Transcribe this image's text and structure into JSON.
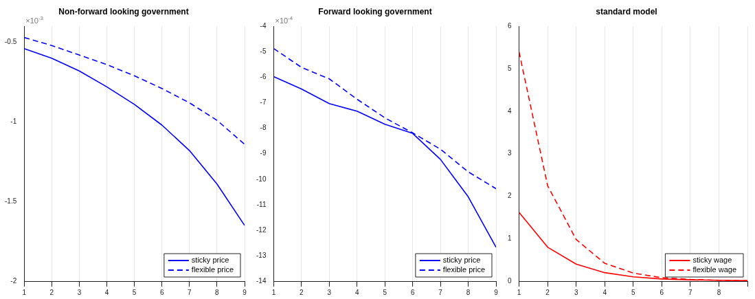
{
  "chart_data": [
    {
      "type": "line",
      "title": "Non-forward looking government",
      "annotations": [
        "×10$^{-3}$"
      ],
      "x": [
        1,
        2,
        3,
        4,
        5,
        6,
        7,
        8,
        9
      ],
      "xlim": [
        1,
        9
      ],
      "xticks": [
        1,
        2,
        3,
        4,
        5,
        6,
        7,
        8,
        9
      ],
      "ylim": [
        -2,
        -0.4
      ],
      "yticks": [
        -2,
        -1.5,
        -1,
        -0.5
      ],
      "grid": "x",
      "legend": "bottom right",
      "marker": "none",
      "series": [
        {
          "name": "sticky price",
          "color": "#0000ff",
          "line_style": "solid",
          "values": [
            -0.54,
            -0.6,
            -0.68,
            -0.78,
            -0.89,
            -1.02,
            -1.18,
            -1.39,
            -1.65
          ]
        },
        {
          "name": "flexible price",
          "color": "#0000ff",
          "line_style": "dashed",
          "values": [
            -0.47,
            -0.52,
            -0.58,
            -0.64,
            -0.71,
            -0.79,
            -0.88,
            -0.99,
            -1.14
          ]
        }
      ]
    },
    {
      "type": "line",
      "title": "Forward looking government",
      "annotations": [
        "×10$^{-4}$"
      ],
      "x": [
        1,
        2,
        3,
        4,
        5,
        6,
        7,
        8,
        9
      ],
      "xlim": [
        1,
        9
      ],
      "xticks": [
        1,
        2,
        3,
        4,
        5,
        6,
        7,
        8,
        9
      ],
      "ylim": [
        -14,
        -4
      ],
      "yticks": [
        -14,
        -13,
        -12,
        -11,
        -10,
        -9,
        -8,
        -7,
        -6,
        -5,
        -4
      ],
      "grid": "x",
      "legend": "bottom right",
      "marker": "none",
      "series": [
        {
          "name": "sticky price",
          "color": "#0000ff",
          "line_style": "solid",
          "values": [
            -5.97,
            -6.46,
            -7.03,
            -7.33,
            -7.84,
            -8.2,
            -9.22,
            -10.69,
            -12.67
          ]
        },
        {
          "name": "flexible price",
          "color": "#0000ff",
          "line_style": "dashed",
          "values": [
            -4.87,
            -5.61,
            -6.06,
            -6.86,
            -7.59,
            -8.18,
            -8.82,
            -9.71,
            -10.37
          ]
        }
      ]
    },
    {
      "type": "line",
      "title": "standard model",
      "x": [
        1,
        2,
        3,
        4,
        5,
        6,
        7,
        8,
        9
      ],
      "xlim": [
        1,
        9
      ],
      "xticks": [
        1,
        2,
        3,
        4,
        5,
        6,
        7,
        8,
        {
          "value": 9,
          "label": null
        }
      ],
      "ylim": [
        0,
        6
      ],
      "yticks": [
        0,
        1,
        2,
        3,
        4,
        5,
        6
      ],
      "grid": "x",
      "legend": "bottom right",
      "marker": "none",
      "series": [
        {
          "name": "sticky wage",
          "color": "#ff0000",
          "line_style": "solid",
          "values": [
            1.62,
            0.8,
            0.4,
            0.2,
            0.1,
            0.05,
            0.03,
            0.02,
            0.01
          ]
        },
        {
          "name": "flexible wage",
          "color": "#ff0000",
          "line_style": "dashed",
          "values": [
            5.4,
            2.25,
            0.98,
            0.42,
            0.19,
            0.08,
            0.04,
            0.02,
            0.01
          ]
        }
      ]
    }
  ]
}
